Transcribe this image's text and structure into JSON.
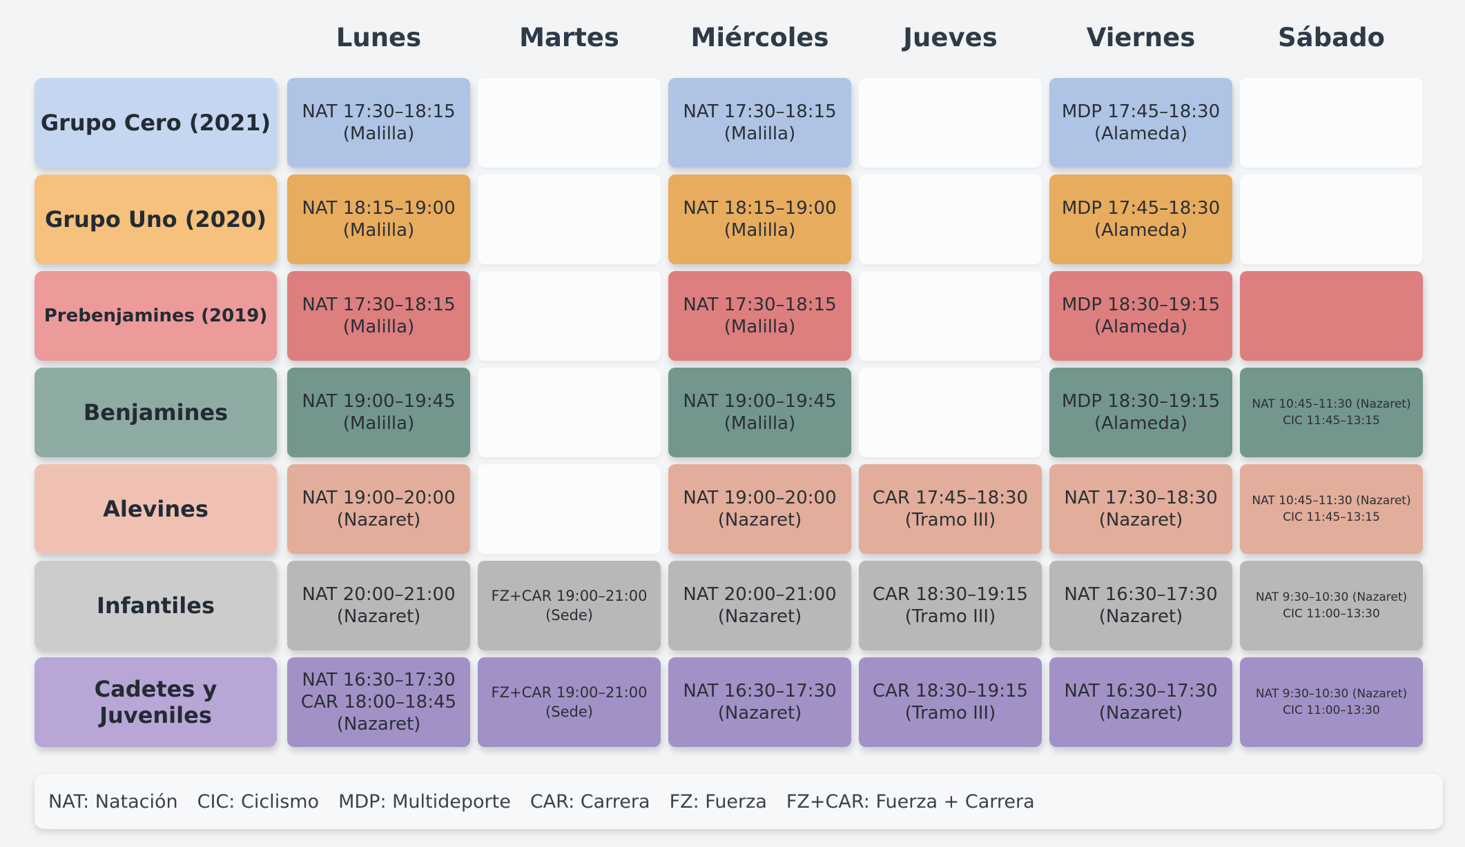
{
  "days": [
    "Lunes",
    "Martes",
    "Miércoles",
    "Jueves",
    "Viernes",
    "Sábado"
  ],
  "groups": [
    {
      "name": "Grupo Cero (2021)",
      "label_color": "#c5d6f1",
      "cell_color": "#afc4e4",
      "cells": [
        [
          "NAT 17:30–18:15",
          "(Malilla)"
        ],
        [],
        [
          "NAT 17:30–18:15",
          "(Malilla)"
        ],
        [],
        [
          "MDP 17:45–18:30",
          "(Alameda)"
        ],
        []
      ]
    },
    {
      "name": "Grupo Uno (2020)",
      "label_color": "#f6c17c",
      "cell_color": "#e8ac5e",
      "cells": [
        [
          "NAT 18:15–19:00",
          "(Malilla)"
        ],
        [],
        [
          "NAT 18:15–19:00",
          "(Malilla)"
        ],
        [],
        [
          "MDP 17:45–18:30",
          "(Alameda)"
        ],
        []
      ]
    },
    {
      "name": "Prebenjamines (2019)",
      "label_color": "#ec9a9a",
      "cell_color": "#dd7f7f",
      "cells": [
        [
          "NAT 17:30–18:15",
          "(Malilla)"
        ],
        [],
        [
          "NAT 17:30–18:15",
          "(Malilla)"
        ],
        [],
        [
          "MDP 18:30–19:15",
          "(Alameda)"
        ],
        [
          ""
        ]
      ]
    },
    {
      "name": "Benjamines",
      "label_color": "#8eaca4",
      "cell_color": "#73978d",
      "cells": [
        [
          "NAT 19:00–19:45",
          "(Malilla)"
        ],
        [],
        [
          "NAT 19:00–19:45",
          "(Malilla)"
        ],
        [],
        [
          "MDP 18:30–19:15",
          "(Alameda)"
        ],
        [
          "NAT 10:45–11:30 (Nazaret)",
          "CIC 11:45–13:15"
        ]
      ]
    },
    {
      "name": "Alevines",
      "label_color": "#f0c1b2",
      "cell_color": "#e2ad9a",
      "cells": [
        [
          "NAT 19:00–20:00",
          "(Nazaret)"
        ],
        [],
        [
          "NAT 19:00–20:00",
          "(Nazaret)"
        ],
        [
          "CAR 17:45–18:30",
          "(Tramo III)"
        ],
        [
          "NAT 17:30–18:30",
          "(Nazaret)"
        ],
        [
          "NAT 10:45–11:30 (Nazaret)",
          "CIC 11:45–13:15"
        ]
      ]
    },
    {
      "name": "Infantiles",
      "label_color": "#cccccc",
      "cell_color": "#b8b8b8",
      "cells": [
        [
          "NAT 20:00–21:00",
          "(Nazaret)"
        ],
        [
          "FZ+CAR 19:00–21:00",
          "(Sede)"
        ],
        [
          "NAT 20:00–21:00",
          "(Nazaret)"
        ],
        [
          "CAR 18:30–19:15",
          "(Tramo III)"
        ],
        [
          "NAT 16:30–17:30",
          "(Nazaret)"
        ],
        [
          "NAT 9:30–10:30 (Nazaret)",
          "CIC 11:00–13:30"
        ]
      ]
    },
    {
      "name": "Cadetes y Juveniles",
      "label_color": "#b8a6d6",
      "cell_color": "#a291c6",
      "cells": [
        [
          "NAT 16:30–17:30",
          "CAR 18:00–18:45",
          "(Nazaret)"
        ],
        [
          "FZ+CAR 19:00–21:00",
          "(Sede)"
        ],
        [
          "NAT 16:30–17:30",
          "(Nazaret)"
        ],
        [
          "CAR 18:30–19:15",
          "(Tramo III)"
        ],
        [
          "NAT 16:30–17:30",
          "(Nazaret)"
        ],
        [
          "NAT 9:30–10:30 (Nazaret)",
          "CIC 11:00–13:30"
        ]
      ]
    }
  ],
  "legend": [
    "NAT: Natación",
    "CIC: Ciclismo",
    "MDP: Multideporte",
    "CAR: Carrera",
    "FZ: Fuerza",
    "FZ+CAR: Fuerza + Carrera"
  ]
}
